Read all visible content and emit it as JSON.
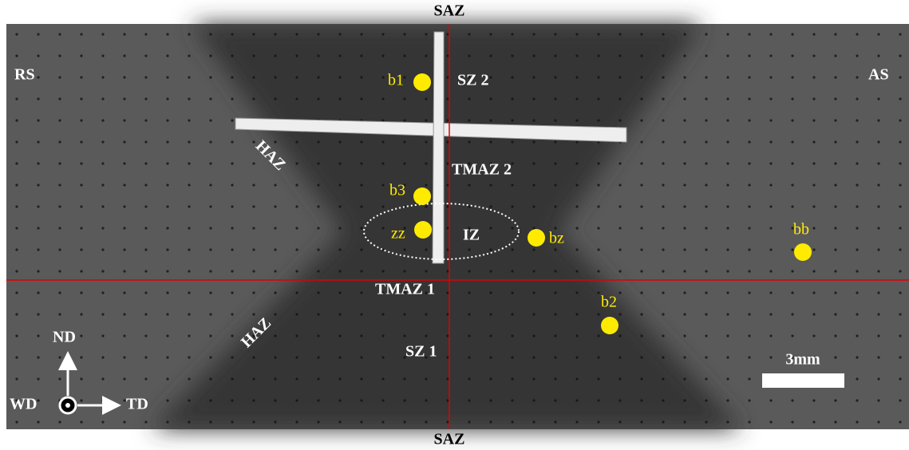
{
  "zones": {
    "top": "SAZ",
    "bottom": "SAZ",
    "sz2": "SZ 2",
    "sz1": "SZ 1",
    "tmaz2": "TMAZ 2",
    "tmaz1": "TMAZ 1",
    "iz": "IZ",
    "haz_upper": "HAZ",
    "haz_lower": "HAZ"
  },
  "sides": {
    "left": "RS",
    "right": "AS"
  },
  "points": [
    "b1",
    "b3",
    "zz",
    "bz",
    "bb",
    "b2"
  ],
  "axes": {
    "nd": "ND",
    "wd": "WD",
    "td": "TD"
  },
  "scale_bar": "3mm"
}
